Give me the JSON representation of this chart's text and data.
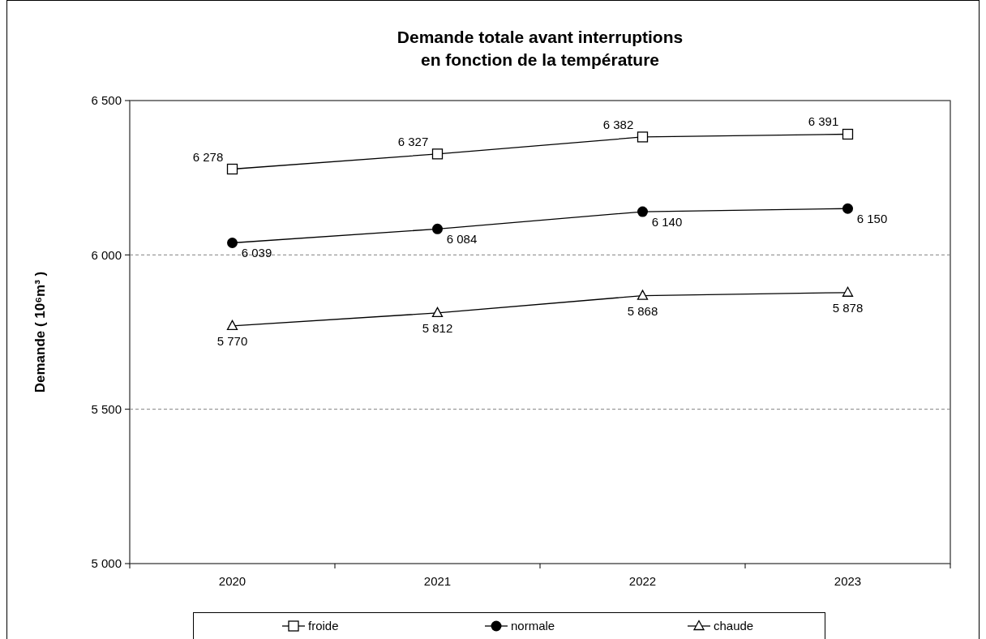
{
  "chart_data": {
    "type": "line",
    "title": "Demande totale avant interruptions\nen fonction de la température",
    "ylabel": "Demande  ( 10⁶m³ )",
    "categories": [
      "2020",
      "2021",
      "2022",
      "2023"
    ],
    "series": [
      {
        "name": "froide",
        "color": "#000000",
        "marker": "square",
        "values": [
          6278,
          6327,
          6382,
          6391
        ]
      },
      {
        "name": "normale",
        "color": "#000000",
        "marker": "circle",
        "values": [
          6039,
          6084,
          6140,
          6150
        ]
      },
      {
        "name": "chaude",
        "color": "#000000",
        "marker": "triangle",
        "values": [
          5770,
          5812,
          5868,
          5878
        ]
      }
    ],
    "ylim": [
      5000,
      6500
    ],
    "yticks": [
      {
        "value": 5000,
        "label": "5 000"
      },
      {
        "value": 5500,
        "label": "5 500"
      },
      {
        "value": 6000,
        "label": "6 000"
      },
      {
        "value": 6500,
        "label": "6 500"
      }
    ],
    "grid": "y",
    "legend": "bottom",
    "data_labels": true,
    "line_style": "solid"
  }
}
